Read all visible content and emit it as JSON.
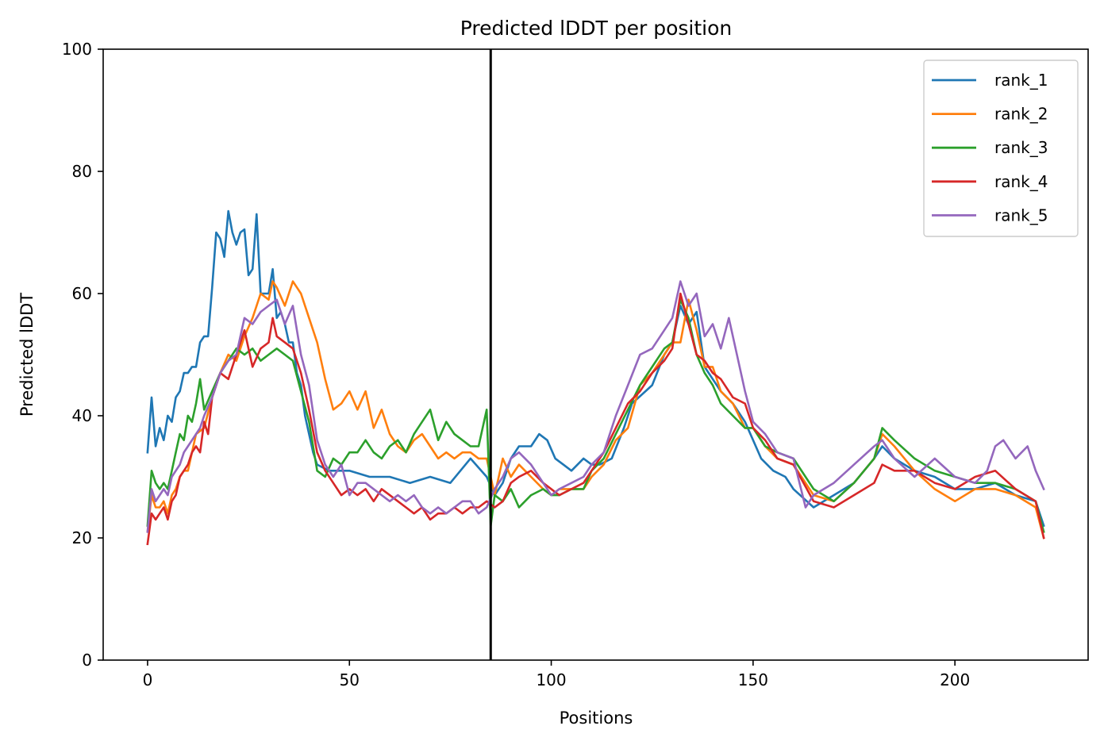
{
  "chart_data": {
    "type": "line",
    "title": "Predicted lDDT per position",
    "xlabel": "Positions",
    "ylabel": "Predicted lDDT",
    "xlim": [
      -11,
      233
    ],
    "ylim": [
      0,
      100
    ],
    "xticks": [
      0,
      50,
      100,
      150,
      200
    ],
    "yticks": [
      0,
      20,
      40,
      60,
      80,
      100
    ],
    "grid": false,
    "legend_position": "top-right",
    "vline": {
      "x": 85,
      "color": "#000000"
    },
    "series": [
      {
        "name": "rank_1",
        "color": "#1f77b4",
        "x": [
          0,
          1,
          2,
          3,
          4,
          5,
          6,
          7,
          8,
          9,
          10,
          11,
          12,
          13,
          14,
          15,
          16,
          17,
          18,
          19,
          20,
          21,
          22,
          23,
          24,
          25,
          26,
          27,
          28,
          29,
          30,
          31,
          32,
          33,
          34,
          35,
          36,
          37,
          38,
          39,
          40,
          41,
          42,
          45,
          50,
          55,
          60,
          65,
          70,
          75,
          80,
          84,
          86,
          88,
          90,
          92,
          95,
          97,
          99,
          101,
          103,
          105,
          108,
          110,
          112,
          115,
          118,
          120,
          125,
          128,
          130,
          132,
          134,
          136,
          138,
          140,
          142,
          145,
          148,
          150,
          152,
          155,
          158,
          160,
          165,
          170,
          175,
          180,
          182,
          185,
          190,
          195,
          200,
          205,
          210,
          215,
          220,
          222
        ],
        "y": [
          34,
          43,
          35,
          38,
          36,
          40,
          39,
          43,
          44,
          47,
          47,
          48,
          48,
          52,
          53,
          53,
          61,
          70,
          69,
          66,
          73.5,
          70,
          68,
          70,
          70.5,
          63,
          64,
          73,
          60,
          60,
          60,
          64,
          56,
          57,
          55,
          52,
          52,
          47,
          45,
          40,
          37,
          34,
          32,
          31,
          31,
          30,
          30,
          29,
          30,
          29,
          33,
          30,
          27,
          29,
          33,
          35,
          35,
          37,
          36,
          33,
          32,
          31,
          33,
          32,
          32,
          33,
          38,
          42,
          45,
          50,
          52,
          58,
          55,
          57,
          48,
          46,
          44,
          42,
          39,
          36,
          33,
          31,
          30,
          28,
          25,
          27,
          29,
          33,
          35,
          33,
          31,
          30,
          28,
          28,
          29,
          27,
          26,
          22
        ]
      },
      {
        "name": "rank_2",
        "color": "#ff7f0e",
        "x": [
          0,
          1,
          2,
          3,
          4,
          5,
          6,
          7,
          8,
          9,
          10,
          12,
          14,
          16,
          18,
          20,
          22,
          24,
          26,
          28,
          30,
          31,
          32,
          34,
          36,
          37,
          38,
          40,
          42,
          44,
          46,
          48,
          50,
          52,
          54,
          56,
          58,
          60,
          62,
          64,
          66,
          68,
          70,
          72,
          74,
          76,
          78,
          80,
          82,
          84,
          86,
          88,
          90,
          92,
          95,
          98,
          100,
          102,
          105,
          108,
          110,
          113,
          116,
          119,
          122,
          125,
          128,
          130,
          132,
          134,
          136,
          138,
          140,
          142,
          145,
          148,
          150,
          153,
          156,
          160,
          165,
          170,
          175,
          180,
          182,
          185,
          190,
          195,
          200,
          205,
          210,
          215,
          220,
          222
        ],
        "y": [
          21,
          27,
          25,
          25,
          26,
          24,
          27,
          28,
          30,
          31,
          31,
          37,
          38,
          43,
          47,
          50,
          49,
          53,
          56,
          60,
          59,
          62,
          61,
          58,
          62,
          61,
          60,
          56,
          52,
          46,
          41,
          42,
          44,
          41,
          44,
          38,
          41,
          37,
          35,
          34,
          36,
          37,
          35,
          33,
          34,
          33,
          34,
          34,
          33,
          33,
          27,
          33,
          30,
          32,
          30,
          28,
          27,
          28,
          28,
          28,
          30,
          32,
          36,
          38,
          45,
          47,
          50,
          52,
          52,
          59,
          54,
          48,
          48,
          44,
          42,
          38,
          38,
          35,
          33,
          32,
          27,
          26,
          29,
          33,
          37,
          35,
          31,
          28,
          26,
          28,
          28,
          27,
          25,
          20
        ]
      },
      {
        "name": "rank_3",
        "color": "#2ca02c",
        "x": [
          0,
          1,
          2,
          3,
          4,
          5,
          6,
          7,
          8,
          9,
          10,
          11,
          12,
          13,
          14,
          16,
          18,
          20,
          22,
          24,
          26,
          28,
          30,
          32,
          34,
          36,
          38,
          40,
          42,
          44,
          46,
          48,
          50,
          52,
          54,
          56,
          58,
          60,
          62,
          64,
          66,
          68,
          70,
          72,
          74,
          76,
          78,
          80,
          82,
          84,
          85,
          86,
          88,
          90,
          92,
          95,
          98,
          100,
          102,
          105,
          108,
          110,
          113,
          116,
          119,
          122,
          125,
          128,
          130,
          132,
          134,
          136,
          138,
          140,
          142,
          145,
          148,
          150,
          153,
          156,
          160,
          165,
          170,
          175,
          180,
          182,
          185,
          190,
          195,
          200,
          205,
          210,
          215,
          220,
          222
        ],
        "y": [
          22,
          31,
          29,
          28,
          29,
          28,
          31,
          34,
          37,
          36,
          40,
          39,
          42,
          46,
          41,
          44,
          47,
          49,
          51,
          50,
          51,
          49,
          50,
          51,
          50,
          49,
          44,
          39,
          31,
          30,
          33,
          32,
          34,
          34,
          36,
          34,
          33,
          35,
          36,
          34,
          37,
          39,
          41,
          36,
          39,
          37,
          36,
          35,
          35,
          41,
          22,
          27,
          26,
          28,
          25,
          27,
          28,
          27,
          27,
          28,
          28,
          31,
          33,
          37,
          41,
          45,
          48,
          51,
          52,
          59,
          56,
          50,
          47,
          45,
          42,
          40,
          38,
          38,
          35,
          34,
          33,
          28,
          26,
          29,
          33,
          38,
          36,
          33,
          31,
          30,
          29,
          29,
          28,
          26,
          21
        ]
      },
      {
        "name": "rank_4",
        "color": "#d62728",
        "x": [
          0,
          1,
          2,
          3,
          4,
          5,
          6,
          7,
          8,
          9,
          10,
          11,
          12,
          13,
          14,
          15,
          16,
          18,
          20,
          22,
          24,
          26,
          28,
          30,
          31,
          32,
          34,
          36,
          38,
          40,
          42,
          44,
          46,
          48,
          50,
          52,
          54,
          56,
          58,
          60,
          62,
          64,
          66,
          68,
          70,
          72,
          74,
          76,
          78,
          80,
          82,
          84,
          86,
          88,
          90,
          92,
          95,
          98,
          100,
          102,
          105,
          108,
          110,
          113,
          116,
          119,
          122,
          125,
          128,
          130,
          132,
          134,
          136,
          138,
          140,
          142,
          145,
          148,
          150,
          153,
          156,
          160,
          165,
          170,
          175,
          180,
          182,
          185,
          190,
          195,
          200,
          205,
          210,
          215,
          220,
          222
        ],
        "y": [
          19,
          24,
          23,
          24,
          25,
          23,
          26,
          27,
          30,
          31,
          32,
          34,
          35,
          34,
          39,
          37,
          43,
          47,
          46,
          50,
          54,
          48,
          51,
          52,
          56,
          53,
          52,
          51,
          47,
          41,
          34,
          31,
          29,
          27,
          28,
          27,
          28,
          26,
          28,
          27,
          26,
          25,
          24,
          25,
          23,
          24,
          24,
          25,
          24,
          25,
          25,
          26,
          25,
          26,
          29,
          30,
          31,
          29,
          28,
          27,
          28,
          29,
          31,
          34,
          38,
          42,
          44,
          47,
          49,
          51,
          60,
          55,
          50,
          49,
          47,
          46,
          43,
          42,
          38,
          36,
          33,
          32,
          26,
          25,
          27,
          29,
          32,
          31,
          31,
          29,
          28,
          30,
          31,
          28,
          26,
          20
        ]
      },
      {
        "name": "rank_5",
        "color": "#9467bd",
        "x": [
          0,
          1,
          2,
          3,
          4,
          5,
          6,
          7,
          8,
          9,
          10,
          11,
          12,
          13,
          14,
          16,
          18,
          20,
          22,
          24,
          26,
          28,
          30,
          32,
          34,
          36,
          38,
          40,
          42,
          44,
          46,
          48,
          50,
          52,
          54,
          56,
          58,
          60,
          62,
          64,
          66,
          68,
          70,
          72,
          74,
          76,
          78,
          80,
          82,
          84,
          86,
          88,
          90,
          92,
          95,
          98,
          100,
          102,
          105,
          108,
          110,
          113,
          116,
          119,
          122,
          125,
          128,
          130,
          132,
          134,
          136,
          138,
          140,
          142,
          144,
          146,
          148,
          150,
          153,
          156,
          160,
          163,
          165,
          170,
          175,
          180,
          182,
          185,
          190,
          195,
          200,
          205,
          208,
          210,
          212,
          215,
          218,
          220,
          222
        ],
        "y": [
          21,
          28,
          26,
          27,
          28,
          27,
          30,
          31,
          32,
          34,
          35,
          36,
          37,
          38,
          40,
          43,
          47,
          49,
          50,
          56,
          55,
          57,
          58,
          59,
          55,
          58,
          50,
          45,
          36,
          32,
          30,
          32,
          27,
          29,
          29,
          28,
          27,
          26,
          27,
          26,
          27,
          25,
          24,
          25,
          24,
          25,
          26,
          26,
          24,
          25,
          28,
          30,
          33,
          34,
          32,
          29,
          27,
          28,
          29,
          30,
          32,
          34,
          40,
          45,
          50,
          51,
          54,
          56,
          62,
          58,
          60,
          53,
          55,
          51,
          56,
          50,
          44,
          39,
          37,
          34,
          33,
          25,
          27,
          29,
          32,
          35,
          36,
          33,
          30,
          33,
          30,
          29,
          31,
          35,
          36,
          33,
          35,
          31,
          28
        ]
      }
    ]
  }
}
